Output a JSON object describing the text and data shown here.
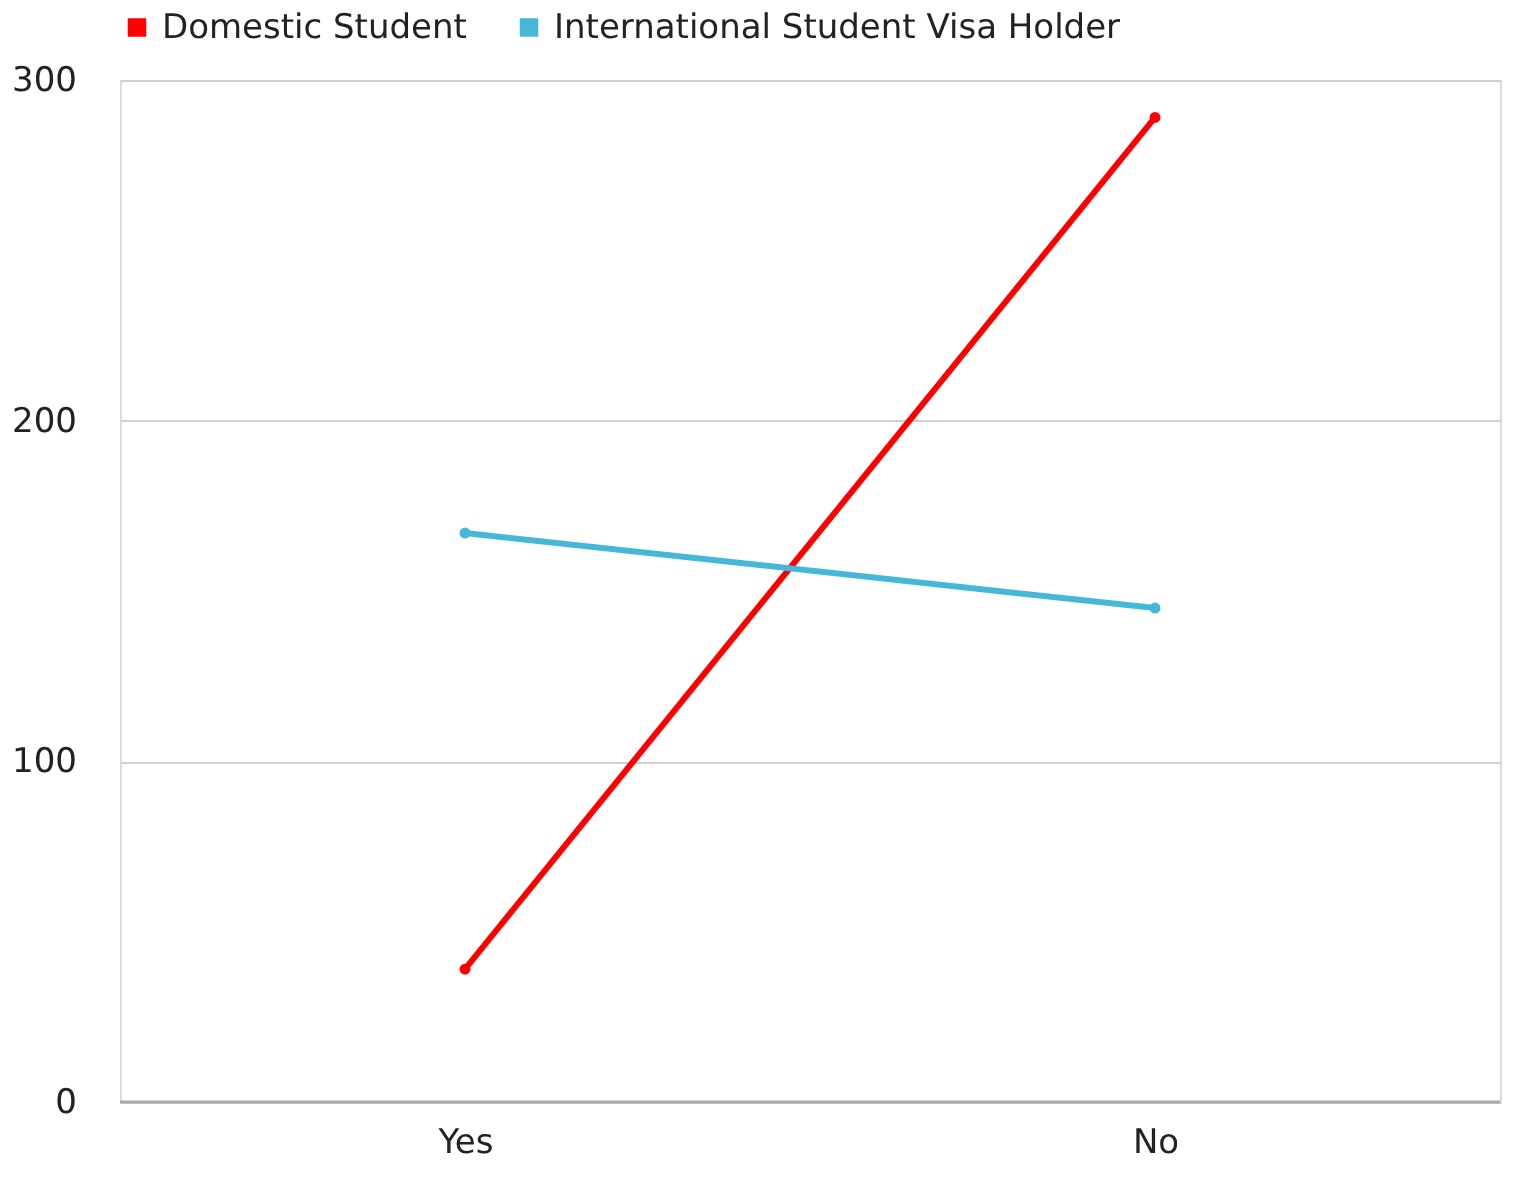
{
  "chart_data": {
    "type": "line",
    "categories": [
      "Yes",
      "No"
    ],
    "series": [
      {
        "name": "Domestic Student",
        "color": "#ff0000",
        "values": [
          39,
          289
        ]
      },
      {
        "name": "International Student Visa Holder",
        "color": "#45b8d8",
        "values": [
          167,
          145
        ]
      }
    ],
    "ylim": [
      0,
      300
    ],
    "yticks": [
      0,
      100,
      200,
      300
    ],
    "grid": "y",
    "legend": "top",
    "marker": "circle",
    "line_style": "solid"
  }
}
